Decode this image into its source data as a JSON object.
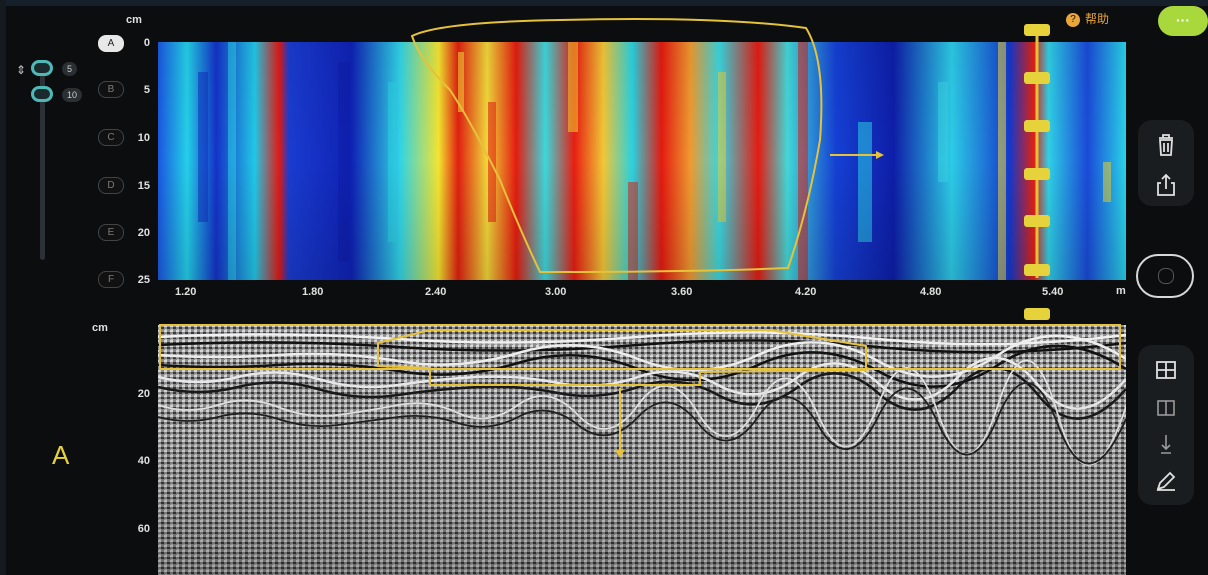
{
  "app": {
    "help_label": "帮助",
    "help_glyph": "?",
    "more_label": "···",
    "mode_letter": "A",
    "accent_green": "#a8d83c",
    "help_orange": "#e8a53a",
    "annotation_yellow": "#e6c23a"
  },
  "left_panel": {
    "drag_handle_glyph": "⇕",
    "knob_tags": [
      "5",
      "10"
    ],
    "layer_buttons": [
      "A",
      "B",
      "C",
      "D",
      "E",
      "F"
    ],
    "active_layer": "A"
  },
  "heatmap": {
    "depth_unit": "cm",
    "depth_ticks": [
      "0",
      "5",
      "10",
      "15",
      "20",
      "25"
    ],
    "distance_unit": "m",
    "distance_ticks": [
      "1.20",
      "1.80",
      "2.40",
      "3.00",
      "3.60",
      "4.20",
      "4.80",
      "5.40"
    ],
    "marker_labels": [
      "",
      "",
      "",
      "",
      "",
      ""
    ]
  },
  "radar": {
    "depth_unit": "cm",
    "depth_ticks": [
      "20",
      "40",
      "60"
    ]
  },
  "toolbar": {
    "icons": [
      "trash-icon",
      "share-icon",
      "record-icon",
      "compare-view-icon",
      "split-view-icon",
      "marker-icon",
      "annotate-pen-icon"
    ]
  }
}
